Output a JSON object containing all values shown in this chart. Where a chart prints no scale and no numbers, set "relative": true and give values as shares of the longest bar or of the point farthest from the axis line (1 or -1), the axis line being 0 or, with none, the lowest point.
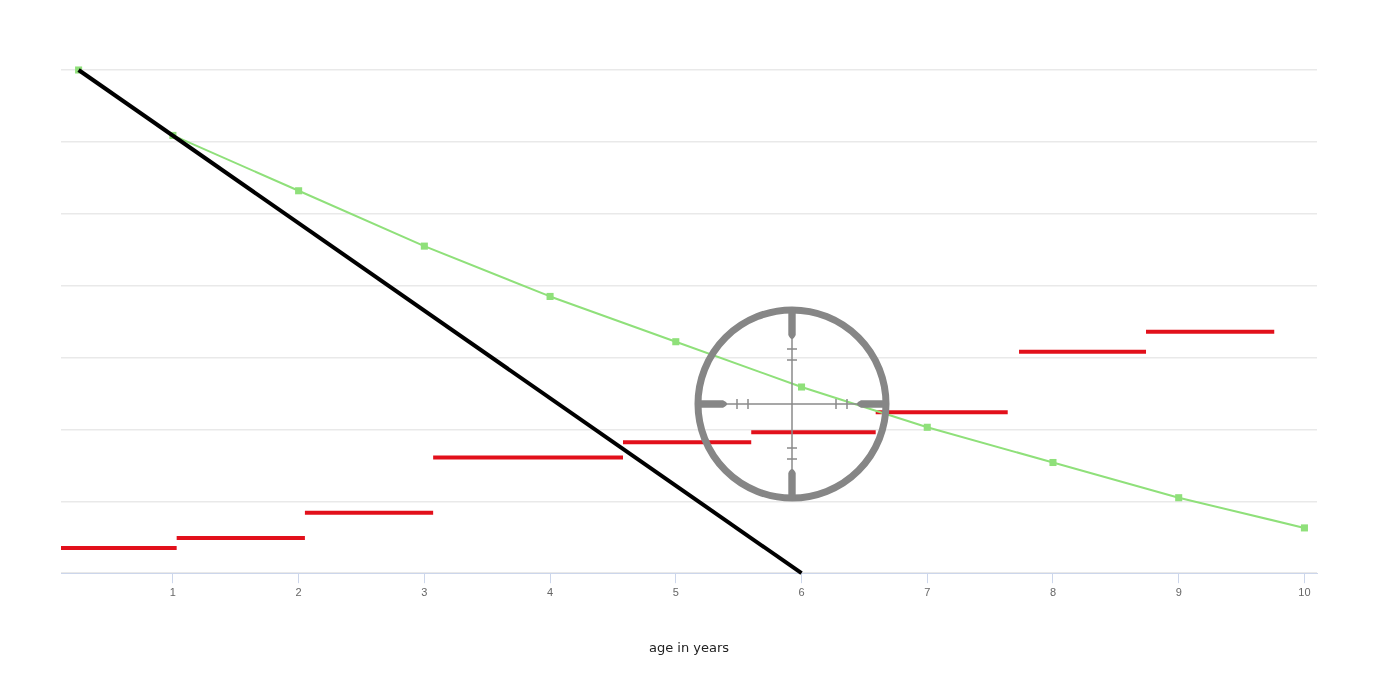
{
  "chart_data": {
    "type": "line",
    "relative": true,
    "xlabel": "age in years",
    "xlim": [
      0.11,
      10.1
    ],
    "xticks": [
      1,
      2,
      3,
      4,
      5,
      6,
      7,
      8,
      9,
      10
    ],
    "grid": "y",
    "series": [
      {
        "color": "#e2101b",
        "x": [
          0.11,
          1.03
        ],
        "values": [
          0.05,
          0.05
        ]
      },
      {
        "color": "#e2101b",
        "x": [
          1.03,
          2.05
        ],
        "values": [
          0.07,
          0.07
        ]
      },
      {
        "color": "#e2101b",
        "x": [
          2.05,
          3.07
        ],
        "values": [
          0.12,
          0.12
        ]
      },
      {
        "color": "#e2101b",
        "x": [
          3.07,
          4.58
        ],
        "values": [
          0.23,
          0.23
        ]
      },
      {
        "color": "#e2101b",
        "x": [
          4.58,
          5.6
        ],
        "values": [
          0.26,
          0.26
        ]
      },
      {
        "color": "#e2101b",
        "x": [
          5.6,
          6.59
        ],
        "values": [
          0.28,
          0.28
        ]
      },
      {
        "color": "#e2101b",
        "x": [
          6.59,
          7.64
        ],
        "values": [
          0.32,
          0.32
        ]
      },
      {
        "color": "#e2101b",
        "x": [
          7.73,
          8.74
        ],
        "values": [
          0.44,
          0.44
        ]
      },
      {
        "color": "#e2101b",
        "x": [
          8.74,
          9.76
        ],
        "values": [
          0.48,
          0.48
        ]
      },
      {
        "color": "#8fe07a",
        "marker": "square",
        "x": [
          0.25,
          1,
          2,
          3,
          4,
          5,
          6,
          7,
          8,
          9,
          10
        ],
        "values": [
          1,
          0.87,
          0.76,
          0.65,
          0.55,
          0.46,
          0.37,
          0.29,
          0.22,
          0.15,
          0.09
        ]
      },
      {
        "color": "#000000",
        "x": [
          0.25,
          6
        ],
        "values": [
          1,
          0
        ]
      }
    ]
  }
}
